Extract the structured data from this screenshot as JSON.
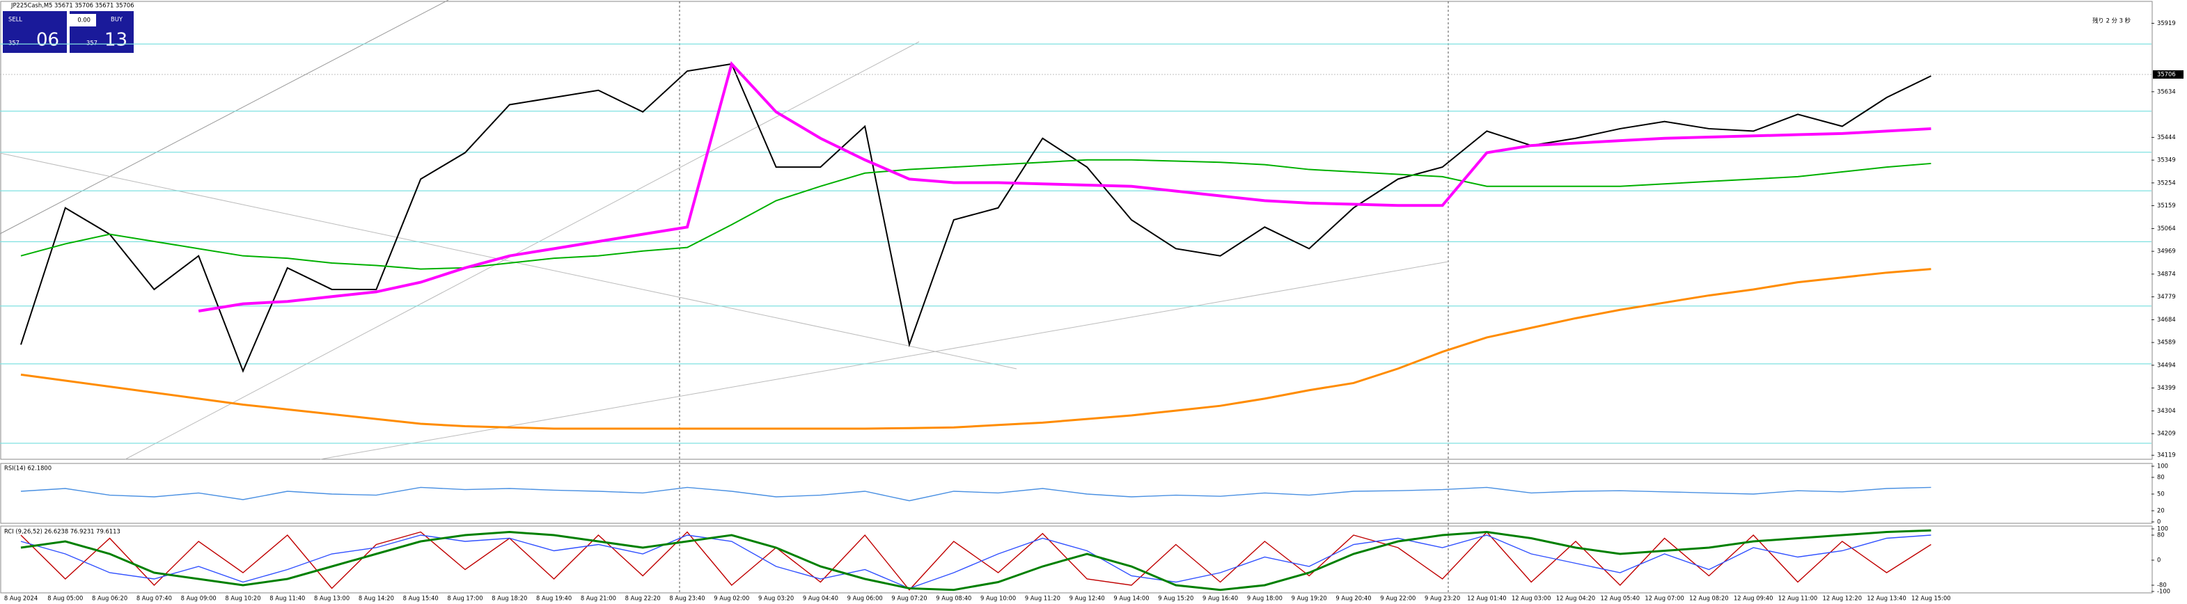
{
  "chart_data": [
    {
      "type": "line",
      "title": "JP225Cash,M5  35671 35706 35671 35706",
      "categories": [
        "8 Aug 2024",
        "8 Aug 05:00",
        "8 Aug 06:20",
        "8 Aug 07:40",
        "8 Aug 09:00",
        "8 Aug 10:20",
        "8 Aug 11:40",
        "8 Aug 13:00",
        "8 Aug 14:20",
        "8 Aug 15:40",
        "8 Aug 17:00",
        "8 Aug 18:20",
        "8 Aug 19:40",
        "8 Aug 21:00",
        "8 Aug 22:20",
        "8 Aug 23:40",
        "9 Aug 02:00",
        "9 Aug 03:20",
        "9 Aug 04:40",
        "9 Aug 06:00",
        "9 Aug 07:20",
        "9 Aug 08:40",
        "9 Aug 10:00",
        "9 Aug 11:20",
        "9 Aug 12:40",
        "9 Aug 14:00",
        "9 Aug 15:20",
        "9 Aug 16:40",
        "9 Aug 18:00",
        "9 Aug 19:20",
        "9 Aug 20:40",
        "9 Aug 22:00",
        "9 Aug 23:20",
        "12 Aug 01:40",
        "12 Aug 03:00",
        "12 Aug 04:20",
        "12 Aug 05:40",
        "12 Aug 07:00",
        "12 Aug 08:20",
        "12 Aug 09:40",
        "12 Aug 11:00",
        "12 Aug 12:20",
        "12 Aug 13:40",
        "12 Aug 15:00"
      ],
      "series": [
        {
          "color": "#000000",
          "width": 1,
          "values": [
            34580,
            35150,
            35040,
            34810,
            34950,
            34470,
            34900,
            34810,
            34810,
            35270,
            35380,
            35580,
            35610,
            35640,
            35550,
            35720,
            35750,
            35320,
            35320,
            35490,
            34580,
            35100,
            35150,
            35440,
            35320,
            35100,
            34980,
            34950,
            35070,
            34980,
            35150,
            35270,
            35320,
            35470,
            35410,
            35440,
            35480,
            35510,
            35480,
            35470,
            35540,
            35490,
            35610,
            35700
          ]
        },
        {
          "color": "#00b000",
          "width": 1,
          "values": [
            34950,
            35000,
            35040,
            35010,
            34980,
            34950,
            34940,
            34920,
            34910,
            34895,
            34900,
            34920,
            34940,
            34950,
            34970,
            34985,
            35080,
            35180,
            35240,
            35295,
            35310,
            35320,
            35330,
            35340,
            35350,
            35350,
            35345,
            35340,
            35330,
            35310,
            35300,
            35290,
            35280,
            35240,
            35240,
            35240,
            35240,
            35250,
            35260,
            35270,
            35280,
            35300,
            35320,
            35335
          ]
        },
        {
          "color": "#ff00ff",
          "width": 2,
          "values": [
            null,
            null,
            null,
            null,
            34720,
            34750,
            34760,
            34780,
            34800,
            34840,
            34900,
            34950,
            34980,
            35010,
            35040,
            35070,
            35750,
            35550,
            35440,
            35350,
            35270,
            35255,
            35255,
            35250,
            35245,
            35240,
            35220,
            35200,
            35180,
            35170,
            35165,
            35160,
            35160,
            35380,
            35410,
            35420,
            35430,
            35440,
            35445,
            35450,
            35455,
            35460,
            35470,
            35480
          ]
        },
        {
          "color": "#ff8c00",
          "width": 1.5,
          "values": [
            34455,
            34430,
            34405,
            34380,
            34355,
            34330,
            34310,
            34290,
            34270,
            34250,
            34240,
            34235,
            34230,
            34230,
            34230,
            34230,
            34230,
            34230,
            34230,
            34230,
            34232,
            34235,
            34245,
            34255,
            34270,
            34285,
            34305,
            34325,
            34355,
            34390,
            34420,
            34480,
            34550,
            34610,
            34650,
            34690,
            34725,
            34755,
            34785,
            34810,
            34840,
            34860,
            34880,
            34895
          ]
        }
      ],
      "levels": [
        35833,
        35553,
        35382,
        35221,
        35009,
        34741,
        34500,
        34169
      ],
      "level_color": "#7fe0e0",
      "last_price": 35706,
      "ylim": [
        34108,
        35999
      ],
      "yticks": [
        35919,
        35634,
        35444,
        35349,
        35254,
        35159,
        35064,
        34969,
        34874,
        34779,
        34684,
        34589,
        34494,
        34399,
        34304,
        34209,
        34119
      ]
    },
    {
      "type": "line",
      "title": "RSI(14) 62.1800",
      "series": [
        {
          "color": "#4a90e2",
          "width": 0.7,
          "values": [
            55,
            60,
            48,
            45,
            52,
            40,
            55,
            50,
            48,
            62,
            58,
            60,
            57,
            55,
            52,
            62,
            55,
            45,
            48,
            55,
            38,
            55,
            52,
            60,
            50,
            45,
            48,
            46,
            52,
            48,
            55,
            56,
            58,
            62,
            52,
            55,
            56,
            54,
            52,
            50,
            56,
            54,
            60,
            62
          ]
        }
      ],
      "ylim": [
        0,
        100
      ],
      "yticks": [
        0,
        20,
        50,
        80,
        100
      ]
    },
    {
      "type": "line",
      "title": "RCI (9,26,52) 26.6238 76.9231 79.6113",
      "series": [
        {
          "color": "#c00000",
          "width": 0.7,
          "values": [
            80,
            -60,
            70,
            -80,
            60,
            -40,
            80,
            -90,
            50,
            90,
            -30,
            70,
            -60,
            80,
            -50,
            90,
            -80,
            40,
            -70,
            80,
            -95,
            60,
            -40,
            85,
            -60,
            -80,
            50,
            -70,
            60,
            -50,
            80,
            40,
            -60,
            90,
            -70,
            60,
            -80,
            70,
            -50,
            80,
            -70,
            60,
            -40,
            50
          ]
        },
        {
          "color": "#3050ff",
          "width": 0.7,
          "values": [
            60,
            20,
            -40,
            -60,
            -20,
            -70,
            -30,
            20,
            40,
            80,
            60,
            70,
            30,
            50,
            20,
            80,
            60,
            -20,
            -60,
            -30,
            -90,
            -40,
            20,
            70,
            30,
            -50,
            -70,
            -40,
            10,
            -20,
            50,
            70,
            40,
            80,
            20,
            -10,
            -40,
            20,
            -30,
            40,
            10,
            30,
            70,
            80
          ]
        },
        {
          "color": "#008000",
          "width": 1.5,
          "values": [
            40,
            60,
            20,
            -40,
            -60,
            -80,
            -60,
            -20,
            20,
            60,
            80,
            90,
            80,
            60,
            40,
            60,
            80,
            40,
            -20,
            -60,
            -90,
            -95,
            -70,
            -20,
            20,
            -20,
            -80,
            -95,
            -80,
            -40,
            20,
            60,
            80,
            90,
            70,
            40,
            20,
            30,
            40,
            60,
            70,
            80,
            90,
            95
          ]
        }
      ],
      "ylim": [
        -100,
        100
      ],
      "yticks": [
        -100,
        -80,
        0,
        80,
        100
      ]
    }
  ],
  "trade_panel": {
    "sell": "SELL",
    "buy": "BUY",
    "lots": "0.00",
    "bid_big": "357",
    "bid_small": "06",
    "ask_big": "357",
    "ask_small": "13"
  },
  "countdown": "残り 2 分 3 秒"
}
